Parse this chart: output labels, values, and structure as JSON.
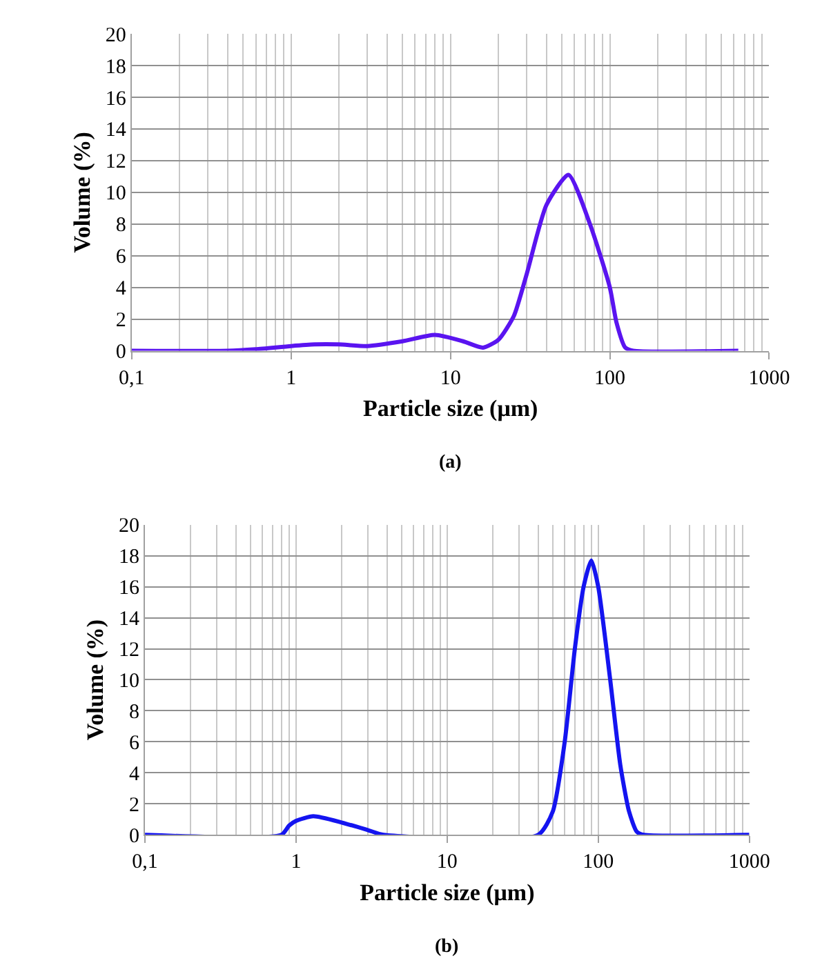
{
  "chart_data": [
    {
      "type": "line",
      "xlabel": "Particle size (μm)",
      "ylabel": "Volume (%)",
      "annotations": [
        "(a)"
      ],
      "series": [
        {
          "color": "#5a14f0",
          "x": [
            0.1,
            0.4,
            0.6,
            1,
            1.4,
            2,
            3,
            5,
            8,
            12,
            16,
            20,
            25,
            30,
            40,
            55,
            75,
            100,
            110,
            125,
            140,
            640
          ],
          "values": [
            0,
            0,
            0.1,
            0.3,
            0.4,
            0.4,
            0.3,
            0.6,
            1.0,
            0.6,
            0.2,
            0.7,
            2.2,
            4.8,
            9.2,
            11.1,
            8.0,
            4.0,
            1.8,
            0.2,
            0,
            0
          ]
        }
      ],
      "log": "x",
      "xlim": [
        0.1,
        1000
      ],
      "xticks": [
        {
          "value": 0.1,
          "label": "0,1"
        },
        1,
        10,
        100,
        1000
      ],
      "ylim": [
        0,
        20
      ],
      "yticks": [
        0,
        2,
        4,
        6,
        8,
        10,
        12,
        14,
        16,
        18,
        20
      ],
      "grid": true,
      "marker": "none",
      "line_style": "solid"
    },
    {
      "type": "line",
      "xlabel": "Particle size (μm)",
      "ylabel": "Volume (%)",
      "annotations": [
        "(b)"
      ],
      "series": [
        {
          "color": "#1414f0",
          "x": [
            0.1,
            0.8,
            0.9,
            1,
            1.3,
            2,
            3,
            3.8,
            40,
            50,
            60,
            70,
            80,
            90,
            100,
            120,
            140,
            160,
            180,
            200,
            1000
          ],
          "values": [
            0,
            0,
            0.6,
            0.9,
            1.2,
            0.8,
            0.3,
            0,
            0,
            1.5,
            6,
            12,
            16,
            17.7,
            16,
            10,
            4.5,
            1.5,
            0.2,
            0,
            0
          ]
        }
      ],
      "log": "x",
      "xlim": [
        0.1,
        1000
      ],
      "xticks": [
        {
          "value": 0.1,
          "label": "0,1"
        },
        1,
        10,
        100,
        1000
      ],
      "ylim": [
        0,
        20
      ],
      "yticks": [
        0,
        2,
        4,
        6,
        8,
        10,
        12,
        14,
        16,
        18,
        20
      ],
      "grid": true,
      "marker": "none",
      "line_style": "solid"
    }
  ]
}
